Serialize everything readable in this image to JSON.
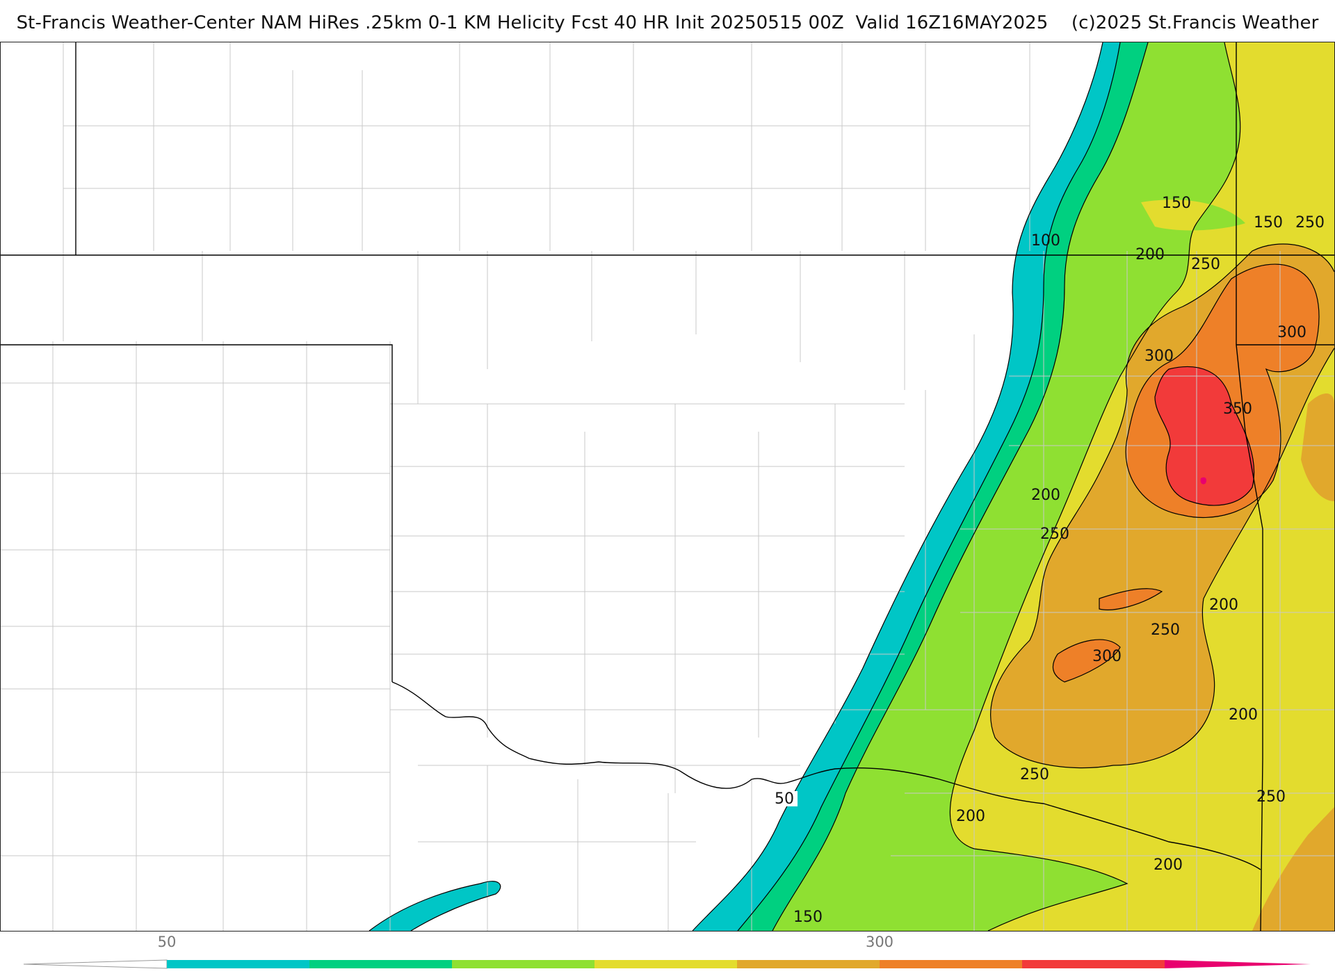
{
  "title": "St-Francis Weather-Center NAM HiRes .25km 0-1 KM Helicity Fcst 40 HR Init 20250515 00Z  Valid 16Z16MAY2025    (c)2025 St.Francis Weather",
  "colors": {
    "lt50": "#ffffff",
    "c50": "#00c6c6",
    "c100": "#00d080",
    "c150": "#8fe032",
    "c200": "#e3dc2e",
    "c250": "#e1a82c",
    "c300": "#ee8028",
    "c350": "#f23a3a",
    "c400": "#e8006e",
    "boundary": "#000000",
    "county": "#c8c8c8"
  },
  "contour_labels": [
    {
      "id": "lbl-50",
      "text": "50"
    },
    {
      "id": "lbl-100",
      "text": "100"
    },
    {
      "id": "lbl-150-a",
      "text": "150"
    },
    {
      "id": "lbl-150-b",
      "text": "150"
    },
    {
      "id": "lbl-150-c",
      "text": "150"
    },
    {
      "id": "lbl-200-a",
      "text": "200"
    },
    {
      "id": "lbl-200-b",
      "text": "200"
    },
    {
      "id": "lbl-200-c",
      "text": "200"
    },
    {
      "id": "lbl-200-d",
      "text": "200"
    },
    {
      "id": "lbl-200-e",
      "text": "200"
    },
    {
      "id": "lbl-200-f",
      "text": "200"
    },
    {
      "id": "lbl-250-a",
      "text": "250"
    },
    {
      "id": "lbl-250-b",
      "text": "250"
    },
    {
      "id": "lbl-250-c",
      "text": "250"
    },
    {
      "id": "lbl-250-d",
      "text": "250"
    },
    {
      "id": "lbl-250-e",
      "text": "250"
    },
    {
      "id": "lbl-250-f",
      "text": "250"
    },
    {
      "id": "lbl-300-a",
      "text": "300"
    },
    {
      "id": "lbl-300-b",
      "text": "300"
    },
    {
      "id": "lbl-300-c",
      "text": "300"
    },
    {
      "id": "lbl-350",
      "text": "350"
    }
  ],
  "scale": {
    "tick_labels": [
      "50",
      "300"
    ]
  }
}
